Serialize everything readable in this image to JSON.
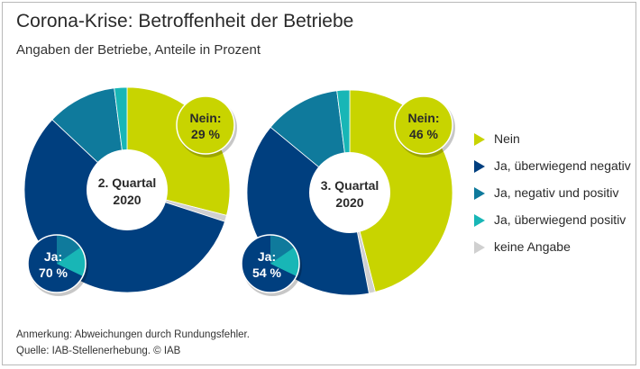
{
  "title": "Corona-Krise: Betroffenheit der Betriebe",
  "subtitle": "Angaben der Betriebe, Anteile in Prozent",
  "note": "Anmerkung: Abweichungen durch Rundungsfehler.",
  "source": "Quelle: IAB-Stellenerhebung. © IAB",
  "colors": {
    "nein": "#c8d400",
    "ja_negativ": "#003f7f",
    "ja_gemischt": "#0f7a9c",
    "ja_positiv": "#18b6b6",
    "keine_angabe": "#d0d0d0"
  },
  "legend": [
    {
      "label": "Nein",
      "color": "#c8d400"
    },
    {
      "label": "Ja, überwiegend negativ",
      "color": "#003f7f"
    },
    {
      "label": "Ja, negativ und positiv",
      "color": "#0f7a9c"
    },
    {
      "label": "Ja, überwiegend positiv",
      "color": "#18b6b6"
    },
    {
      "label": "keine Angabe",
      "color": "#d0d0d0"
    }
  ],
  "chart_data": [
    {
      "type": "pie",
      "center_label_line1": "2. Quartal",
      "center_label_line2": "2020",
      "nein_label": "Nein:",
      "nein_value_label": "29 %",
      "ja_label": "Ja:",
      "ja_value_label": "70 %",
      "slices": [
        {
          "name": "Nein",
          "value": 29
        },
        {
          "name": "keine Angabe",
          "value": 1
        },
        {
          "name": "Ja, überwiegend negativ",
          "value": 57
        },
        {
          "name": "Ja, negativ und positiv",
          "value": 11
        },
        {
          "name": "Ja, überwiegend positiv",
          "value": 2
        }
      ]
    },
    {
      "type": "pie",
      "center_label_line1": "3. Quartal",
      "center_label_line2": "2020",
      "nein_label": "Nein:",
      "nein_value_label": "46 %",
      "ja_label": "Ja:",
      "ja_value_label": "54 %",
      "slices": [
        {
          "name": "Nein",
          "value": 46
        },
        {
          "name": "keine Angabe",
          "value": 1
        },
        {
          "name": "Ja, überwiegend negativ",
          "value": 39
        },
        {
          "name": "Ja, negativ und positiv",
          "value": 12
        },
        {
          "name": "Ja, überwiegend positiv",
          "value": 2
        }
      ]
    }
  ]
}
